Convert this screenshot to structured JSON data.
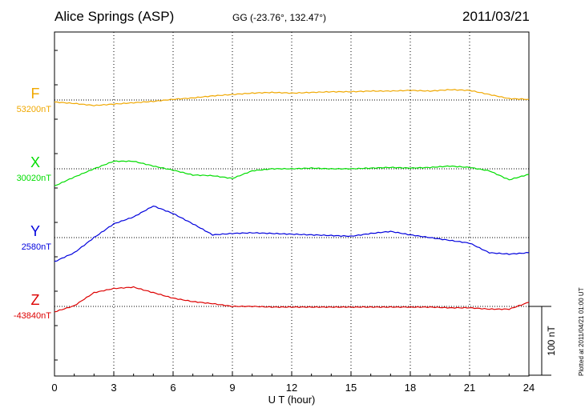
{
  "header": {
    "station": "Alice Springs (ASP)",
    "coords": "GG (-23.76°, 132.47°)",
    "date": "2011/03/21"
  },
  "plotted_note": "Plotted at 2011/04/21 01:00 UT",
  "chart_data": {
    "type": "line",
    "xlabel": "U T (hour)",
    "xlim": [
      0,
      24
    ],
    "x_ticks": [
      "0",
      "3",
      "6",
      "9",
      "12",
      "15",
      "18",
      "21",
      "24"
    ],
    "grid": true,
    "scale_bar": {
      "label": "100 nT",
      "value": 100
    },
    "series": [
      {
        "name": "F",
        "baseline_label": "53200nT",
        "baseline": 53200,
        "color": "#f0a800",
        "points": [
          [
            0,
            53197
          ],
          [
            1,
            53195
          ],
          [
            2,
            53192
          ],
          [
            3,
            53194
          ],
          [
            4,
            53196
          ],
          [
            5,
            53198
          ],
          [
            6,
            53201
          ],
          [
            7,
            53203
          ],
          [
            8,
            53206
          ],
          [
            9,
            53208
          ],
          [
            10,
            53210
          ],
          [
            11,
            53211
          ],
          [
            12,
            53210
          ],
          [
            13,
            53211
          ],
          [
            14,
            53212
          ],
          [
            15,
            53212
          ],
          [
            16,
            53213
          ],
          [
            17,
            53213
          ],
          [
            18,
            53214
          ],
          [
            19,
            53213
          ],
          [
            20,
            53215
          ],
          [
            21,
            53214
          ],
          [
            22,
            53208
          ],
          [
            23,
            53202
          ],
          [
            24,
            53201
          ]
        ]
      },
      {
        "name": "X",
        "baseline_label": "30020nT",
        "baseline": 30020,
        "color": "#00dd00",
        "points": [
          [
            0,
            29995
          ],
          [
            1,
            30008
          ],
          [
            2,
            30020
          ],
          [
            3,
            30031
          ],
          [
            4,
            30031
          ],
          [
            5,
            30024
          ],
          [
            6,
            30018
          ],
          [
            7,
            30011
          ],
          [
            8,
            30010
          ],
          [
            9,
            30006
          ],
          [
            10,
            30017
          ],
          [
            11,
            30020
          ],
          [
            12,
            30020
          ],
          [
            13,
            30021
          ],
          [
            14,
            30020
          ],
          [
            15,
            30020
          ],
          [
            16,
            30021
          ],
          [
            17,
            30022
          ],
          [
            18,
            30021
          ],
          [
            19,
            30022
          ],
          [
            20,
            30024
          ],
          [
            21,
            30022
          ],
          [
            22,
            30017
          ],
          [
            23,
            30004
          ],
          [
            24,
            30012
          ]
        ]
      },
      {
        "name": "Y",
        "baseline_label": "2580nT",
        "baseline": 2580,
        "color": "#0000dd",
        "points": [
          [
            0,
            2545
          ],
          [
            1,
            2558
          ],
          [
            2,
            2580
          ],
          [
            3,
            2600
          ],
          [
            4,
            2610
          ],
          [
            5,
            2626
          ],
          [
            6,
            2615
          ],
          [
            7,
            2600
          ],
          [
            8,
            2584
          ],
          [
            9,
            2586
          ],
          [
            10,
            2587
          ],
          [
            11,
            2586
          ],
          [
            12,
            2585
          ],
          [
            13,
            2584
          ],
          [
            14,
            2583
          ],
          [
            15,
            2582
          ],
          [
            16,
            2586
          ],
          [
            17,
            2589
          ],
          [
            18,
            2584
          ],
          [
            19,
            2580
          ],
          [
            20,
            2576
          ],
          [
            21,
            2572
          ],
          [
            22,
            2558
          ],
          [
            23,
            2556
          ],
          [
            24,
            2558
          ]
        ]
      },
      {
        "name": "Z",
        "baseline_label": "-43840nT",
        "baseline": -43840,
        "color": "#dd0000",
        "points": [
          [
            0,
            -43848
          ],
          [
            1,
            -43839
          ],
          [
            2,
            -43820
          ],
          [
            3,
            -43814
          ],
          [
            4,
            -43812
          ],
          [
            5,
            -43820
          ],
          [
            6,
            -43828
          ],
          [
            7,
            -43833
          ],
          [
            8,
            -43836
          ],
          [
            9,
            -43840
          ],
          [
            10,
            -43840
          ],
          [
            11,
            -43841
          ],
          [
            12,
            -43841
          ],
          [
            13,
            -43841
          ],
          [
            14,
            -43841
          ],
          [
            15,
            -43841
          ],
          [
            16,
            -43841
          ],
          [
            17,
            -43841
          ],
          [
            18,
            -43841
          ],
          [
            19,
            -43841
          ],
          [
            20,
            -43842
          ],
          [
            21,
            -43842
          ],
          [
            22,
            -43844
          ],
          [
            23,
            -43844
          ],
          [
            24,
            -43834
          ]
        ]
      }
    ]
  }
}
